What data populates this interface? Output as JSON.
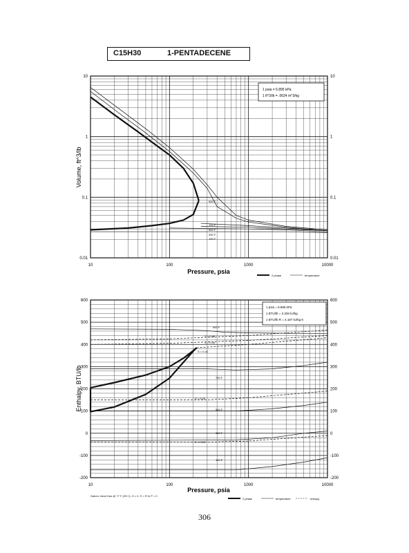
{
  "header": {
    "formula": "C15H30",
    "compound": "1-PENTADECENE"
  },
  "page_number": "306",
  "chart_data": [
    {
      "type": "line",
      "xscale": "log",
      "yscale": "log",
      "xlim": [
        10,
        10000
      ],
      "ylim": [
        0.01,
        10
      ],
      "xlabel": "Pressure,  psia",
      "ylabel": "Volume, ft^3/lb",
      "x_ticks": [
        "10",
        "100",
        "1000",
        "10000"
      ],
      "y_ticks": [
        "0.01",
        "0.1",
        "1",
        "10"
      ],
      "grid": true,
      "conversion_box": [
        "1 psia  =  6.895 kPa",
        "1 ft^3/lb  =  .0624 m^3/kg"
      ],
      "legend": {
        "placement": "bottom-right",
        "entries": [
          "2 phase",
          "temperature"
        ]
      },
      "series": [
        {
          "role": "saturated-liquid",
          "line": "thick",
          "points": [
            [
              10,
              0.029
            ],
            [
              30,
              0.031
            ],
            [
              60,
              0.034
            ],
            [
              100,
              0.037
            ],
            [
              150,
              0.042
            ],
            [
              200,
              0.052
            ],
            [
              235,
              0.088
            ]
          ]
        },
        {
          "role": "saturated-vapor",
          "line": "thick",
          "points": [
            [
              10,
              4.5
            ],
            [
              20,
              2.3
            ],
            [
              40,
              1.2
            ],
            [
              70,
              0.7
            ],
            [
              100,
              0.5
            ],
            [
              150,
              0.3
            ],
            [
              200,
              0.17
            ],
            [
              235,
              0.088
            ]
          ]
        },
        {
          "name": "900 F",
          "line": "thin",
          "points": [
            [
              10,
              6.5
            ],
            [
              20,
              3.3
            ],
            [
              50,
              1.35
            ],
            [
              100,
              0.66
            ],
            [
              200,
              0.29
            ],
            [
              300,
              0.16
            ],
            [
              400,
              0.1
            ],
            [
              700,
              0.05
            ],
            [
              1000,
              0.042
            ],
            [
              3000,
              0.033
            ],
            [
              10000,
              0.029
            ]
          ]
        },
        {
          "line": "thin",
          "points": [
            [
              10,
              5.6
            ],
            [
              20,
              2.8
            ],
            [
              50,
              1.15
            ],
            [
              100,
              0.57
            ],
            [
              200,
              0.25
            ],
            [
              300,
              0.14
            ],
            [
              400,
              0.07
            ],
            [
              700,
              0.045
            ],
            [
              1000,
              0.039
            ],
            [
              3000,
              0.032
            ],
            [
              10000,
              0.028
            ]
          ]
        },
        {
          "name": "700 F",
          "line": "thin",
          "points": [
            [
              250,
              0.037
            ],
            [
              1000,
              0.034
            ],
            [
              3000,
              0.031
            ],
            [
              10000,
              0.028
            ]
          ]
        },
        {
          "name": "500 F",
          "line": "thin",
          "points": [
            [
              250,
              0.033
            ],
            [
              1000,
              0.032
            ],
            [
              3000,
              0.03
            ],
            [
              10000,
              0.028
            ]
          ]
        },
        {
          "name": "300 F",
          "line": "thin",
          "points": [
            [
              100,
              0.031
            ],
            [
              1000,
              0.03
            ],
            [
              3000,
              0.029
            ],
            [
              10000,
              0.027
            ]
          ]
        },
        {
          "name": "100 F",
          "line": "thin",
          "points": [
            [
              10,
              0.027
            ],
            [
              1000,
              0.027
            ],
            [
              3000,
              0.027
            ],
            [
              10000,
              0.026
            ]
          ]
        }
      ],
      "temperature_labels": [
        "900 F",
        "700 F",
        "500 F",
        "300 F",
        "100 F"
      ]
    },
    {
      "type": "line",
      "xscale": "log",
      "yscale": "linear",
      "xlim": [
        10,
        10000
      ],
      "ylim": [
        -200,
        600
      ],
      "xlabel": "Pressure,  psia",
      "ylabel": "Enthalpy, BTU/lb",
      "x_ticks": [
        "10",
        "100",
        "1000",
        "10000"
      ],
      "y_ticks": [
        "-200",
        "-100",
        "0",
        "100",
        "200",
        "300",
        "400",
        "500",
        "600"
      ],
      "grid": true,
      "conversion_box": [
        "1 psia  =  6.895 kPa",
        "1 BTU/lb  =  2.326 kJ/kg",
        "1 BTU/lb R  =  4.187 kJ/kg K"
      ],
      "legend": {
        "placement": "bottom-right",
        "entries": [
          "2 phase",
          "temperature",
          "entropy"
        ]
      },
      "datum": "Datum: Ideal Gas @ 77 F (25 C), H = 0,  S = R ln P = 0",
      "series": [
        {
          "role": "saturated-vapor",
          "line": "thick",
          "points": [
            [
              10,
              205
            ],
            [
              20,
              228
            ],
            [
              50,
              262
            ],
            [
              100,
              300
            ],
            [
              150,
              338
            ],
            [
              200,
              372
            ],
            [
              220,
              385
            ]
          ]
        },
        {
          "role": "saturated-liquid",
          "line": "thick",
          "points": [
            [
              10,
              97
            ],
            [
              20,
              118
            ],
            [
              50,
              175
            ],
            [
              100,
              248
            ],
            [
              150,
              320
            ],
            [
              200,
              370
            ],
            [
              220,
              385
            ]
          ]
        },
        {
          "role": "vertical-link",
          "line": "thick",
          "points": [
            [
              10,
              97
            ],
            [
              10,
              205
            ]
          ]
        },
        {
          "name": "900 F",
          "line": "thin",
          "points": [
            [
              10,
              470
            ],
            [
              100,
              468
            ],
            [
              300,
              462
            ],
            [
              500,
              455
            ],
            [
              1000,
              452
            ],
            [
              3000,
              450
            ],
            [
              10000,
              448
            ]
          ]
        },
        {
          "name": "700 F",
          "line": "thin",
          "points": [
            [
              10,
              290
            ],
            [
              300,
              290
            ],
            [
              700,
              285
            ],
            [
              2000,
              290
            ],
            [
              5000,
              305
            ],
            [
              10000,
              320
            ]
          ]
        },
        {
          "name": "500 F",
          "line": "thin",
          "points": [
            [
              10,
              100
            ],
            [
              300,
              100
            ],
            [
              700,
              100
            ],
            [
              2000,
              110
            ],
            [
              5000,
              125
            ],
            [
              10000,
              140
            ]
          ]
        },
        {
          "name": "300 F",
          "line": "thin",
          "points": [
            [
              10,
              -33
            ],
            [
              700,
              -30
            ],
            [
              2000,
              -20
            ],
            [
              5000,
              0
            ],
            [
              10000,
              10
            ]
          ]
        },
        {
          "name": "100 F",
          "line": "thin",
          "points": [
            [
              10,
              -165
            ],
            [
              700,
              -165
            ],
            [
              2000,
              -150
            ],
            [
              5000,
              -130
            ],
            [
              10000,
              -110
            ]
          ]
        },
        {
          "name": "S = 0.48",
          "line": "dashed",
          "points": [
            [
              10,
              420
            ],
            [
              100,
              425
            ],
            [
              1000,
              440
            ],
            [
              10000,
              465
            ]
          ]
        },
        {
          "name": "S = 0.44",
          "line": "dashed",
          "points": [
            [
              10,
              400
            ],
            [
              100,
              405
            ],
            [
              1000,
              418
            ],
            [
              10000,
              440
            ]
          ]
        },
        {
          "name": "S = 0.42",
          "line": "dashed",
          "points": [
            [
              220,
              385
            ],
            [
              1000,
              400
            ],
            [
              10000,
              430
            ]
          ]
        },
        {
          "name": "S = 0.20",
          "line": "dashed",
          "points": [
            [
              10,
              150
            ],
            [
              300,
              150
            ],
            [
              1000,
              160
            ],
            [
              10000,
              190
            ]
          ]
        },
        {
          "name": "S = 0.00",
          "line": "dashed",
          "points": [
            [
              10,
              -40
            ],
            [
              300,
              -40
            ],
            [
              1000,
              -35
            ],
            [
              10000,
              -10
            ]
          ]
        }
      ],
      "temperature_labels": [
        "900 F",
        "700 F",
        "500 F",
        "300 F",
        "100 F"
      ],
      "entropy_labels": [
        "S = 0.48",
        "S = 0.44",
        "S = 0.42",
        "S = 0.20",
        "S = 0.00"
      ]
    }
  ]
}
